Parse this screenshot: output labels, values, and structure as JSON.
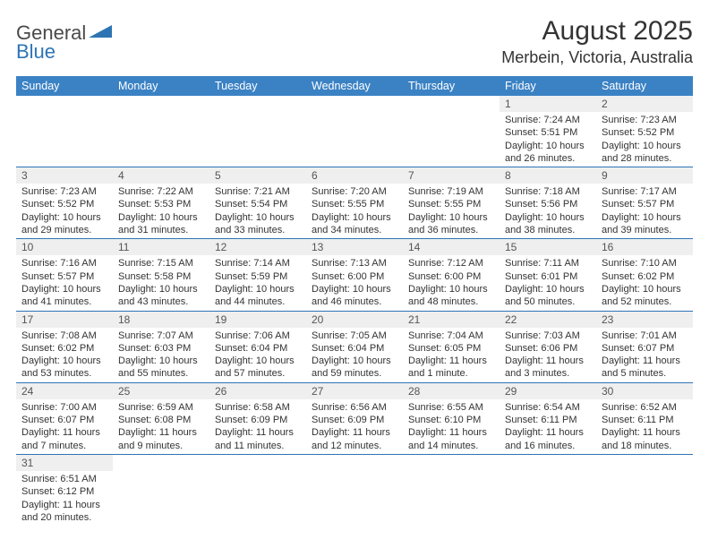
{
  "logo": {
    "part1": "General",
    "part2": "Blue"
  },
  "title": "August 2025",
  "location": "Merbein, Victoria, Australia",
  "colors": {
    "header_bg": "#3b82c4",
    "header_text": "#ffffff",
    "row_divider": "#2e74b5",
    "daynum_bg": "#efefef",
    "logo_gray": "#4a4a4a",
    "logo_blue": "#2e74b5"
  },
  "weekdays": [
    "Sunday",
    "Monday",
    "Tuesday",
    "Wednesday",
    "Thursday",
    "Friday",
    "Saturday"
  ],
  "weeks": [
    [
      {
        "n": "",
        "sr": "",
        "ss": "",
        "dl": ""
      },
      {
        "n": "",
        "sr": "",
        "ss": "",
        "dl": ""
      },
      {
        "n": "",
        "sr": "",
        "ss": "",
        "dl": ""
      },
      {
        "n": "",
        "sr": "",
        "ss": "",
        "dl": ""
      },
      {
        "n": "",
        "sr": "",
        "ss": "",
        "dl": ""
      },
      {
        "n": "1",
        "sr": "Sunrise: 7:24 AM",
        "ss": "Sunset: 5:51 PM",
        "dl": "Daylight: 10 hours and 26 minutes."
      },
      {
        "n": "2",
        "sr": "Sunrise: 7:23 AM",
        "ss": "Sunset: 5:52 PM",
        "dl": "Daylight: 10 hours and 28 minutes."
      }
    ],
    [
      {
        "n": "3",
        "sr": "Sunrise: 7:23 AM",
        "ss": "Sunset: 5:52 PM",
        "dl": "Daylight: 10 hours and 29 minutes."
      },
      {
        "n": "4",
        "sr": "Sunrise: 7:22 AM",
        "ss": "Sunset: 5:53 PM",
        "dl": "Daylight: 10 hours and 31 minutes."
      },
      {
        "n": "5",
        "sr": "Sunrise: 7:21 AM",
        "ss": "Sunset: 5:54 PM",
        "dl": "Daylight: 10 hours and 33 minutes."
      },
      {
        "n": "6",
        "sr": "Sunrise: 7:20 AM",
        "ss": "Sunset: 5:55 PM",
        "dl": "Daylight: 10 hours and 34 minutes."
      },
      {
        "n": "7",
        "sr": "Sunrise: 7:19 AM",
        "ss": "Sunset: 5:55 PM",
        "dl": "Daylight: 10 hours and 36 minutes."
      },
      {
        "n": "8",
        "sr": "Sunrise: 7:18 AM",
        "ss": "Sunset: 5:56 PM",
        "dl": "Daylight: 10 hours and 38 minutes."
      },
      {
        "n": "9",
        "sr": "Sunrise: 7:17 AM",
        "ss": "Sunset: 5:57 PM",
        "dl": "Daylight: 10 hours and 39 minutes."
      }
    ],
    [
      {
        "n": "10",
        "sr": "Sunrise: 7:16 AM",
        "ss": "Sunset: 5:57 PM",
        "dl": "Daylight: 10 hours and 41 minutes."
      },
      {
        "n": "11",
        "sr": "Sunrise: 7:15 AM",
        "ss": "Sunset: 5:58 PM",
        "dl": "Daylight: 10 hours and 43 minutes."
      },
      {
        "n": "12",
        "sr": "Sunrise: 7:14 AM",
        "ss": "Sunset: 5:59 PM",
        "dl": "Daylight: 10 hours and 44 minutes."
      },
      {
        "n": "13",
        "sr": "Sunrise: 7:13 AM",
        "ss": "Sunset: 6:00 PM",
        "dl": "Daylight: 10 hours and 46 minutes."
      },
      {
        "n": "14",
        "sr": "Sunrise: 7:12 AM",
        "ss": "Sunset: 6:00 PM",
        "dl": "Daylight: 10 hours and 48 minutes."
      },
      {
        "n": "15",
        "sr": "Sunrise: 7:11 AM",
        "ss": "Sunset: 6:01 PM",
        "dl": "Daylight: 10 hours and 50 minutes."
      },
      {
        "n": "16",
        "sr": "Sunrise: 7:10 AM",
        "ss": "Sunset: 6:02 PM",
        "dl": "Daylight: 10 hours and 52 minutes."
      }
    ],
    [
      {
        "n": "17",
        "sr": "Sunrise: 7:08 AM",
        "ss": "Sunset: 6:02 PM",
        "dl": "Daylight: 10 hours and 53 minutes."
      },
      {
        "n": "18",
        "sr": "Sunrise: 7:07 AM",
        "ss": "Sunset: 6:03 PM",
        "dl": "Daylight: 10 hours and 55 minutes."
      },
      {
        "n": "19",
        "sr": "Sunrise: 7:06 AM",
        "ss": "Sunset: 6:04 PM",
        "dl": "Daylight: 10 hours and 57 minutes."
      },
      {
        "n": "20",
        "sr": "Sunrise: 7:05 AM",
        "ss": "Sunset: 6:04 PM",
        "dl": "Daylight: 10 hours and 59 minutes."
      },
      {
        "n": "21",
        "sr": "Sunrise: 7:04 AM",
        "ss": "Sunset: 6:05 PM",
        "dl": "Daylight: 11 hours and 1 minute."
      },
      {
        "n": "22",
        "sr": "Sunrise: 7:03 AM",
        "ss": "Sunset: 6:06 PM",
        "dl": "Daylight: 11 hours and 3 minutes."
      },
      {
        "n": "23",
        "sr": "Sunrise: 7:01 AM",
        "ss": "Sunset: 6:07 PM",
        "dl": "Daylight: 11 hours and 5 minutes."
      }
    ],
    [
      {
        "n": "24",
        "sr": "Sunrise: 7:00 AM",
        "ss": "Sunset: 6:07 PM",
        "dl": "Daylight: 11 hours and 7 minutes."
      },
      {
        "n": "25",
        "sr": "Sunrise: 6:59 AM",
        "ss": "Sunset: 6:08 PM",
        "dl": "Daylight: 11 hours and 9 minutes."
      },
      {
        "n": "26",
        "sr": "Sunrise: 6:58 AM",
        "ss": "Sunset: 6:09 PM",
        "dl": "Daylight: 11 hours and 11 minutes."
      },
      {
        "n": "27",
        "sr": "Sunrise: 6:56 AM",
        "ss": "Sunset: 6:09 PM",
        "dl": "Daylight: 11 hours and 12 minutes."
      },
      {
        "n": "28",
        "sr": "Sunrise: 6:55 AM",
        "ss": "Sunset: 6:10 PM",
        "dl": "Daylight: 11 hours and 14 minutes."
      },
      {
        "n": "29",
        "sr": "Sunrise: 6:54 AM",
        "ss": "Sunset: 6:11 PM",
        "dl": "Daylight: 11 hours and 16 minutes."
      },
      {
        "n": "30",
        "sr": "Sunrise: 6:52 AM",
        "ss": "Sunset: 6:11 PM",
        "dl": "Daylight: 11 hours and 18 minutes."
      }
    ],
    [
      {
        "n": "31",
        "sr": "Sunrise: 6:51 AM",
        "ss": "Sunset: 6:12 PM",
        "dl": "Daylight: 11 hours and 20 minutes."
      },
      {
        "n": "",
        "sr": "",
        "ss": "",
        "dl": ""
      },
      {
        "n": "",
        "sr": "",
        "ss": "",
        "dl": ""
      },
      {
        "n": "",
        "sr": "",
        "ss": "",
        "dl": ""
      },
      {
        "n": "",
        "sr": "",
        "ss": "",
        "dl": ""
      },
      {
        "n": "",
        "sr": "",
        "ss": "",
        "dl": ""
      },
      {
        "n": "",
        "sr": "",
        "ss": "",
        "dl": ""
      }
    ]
  ]
}
